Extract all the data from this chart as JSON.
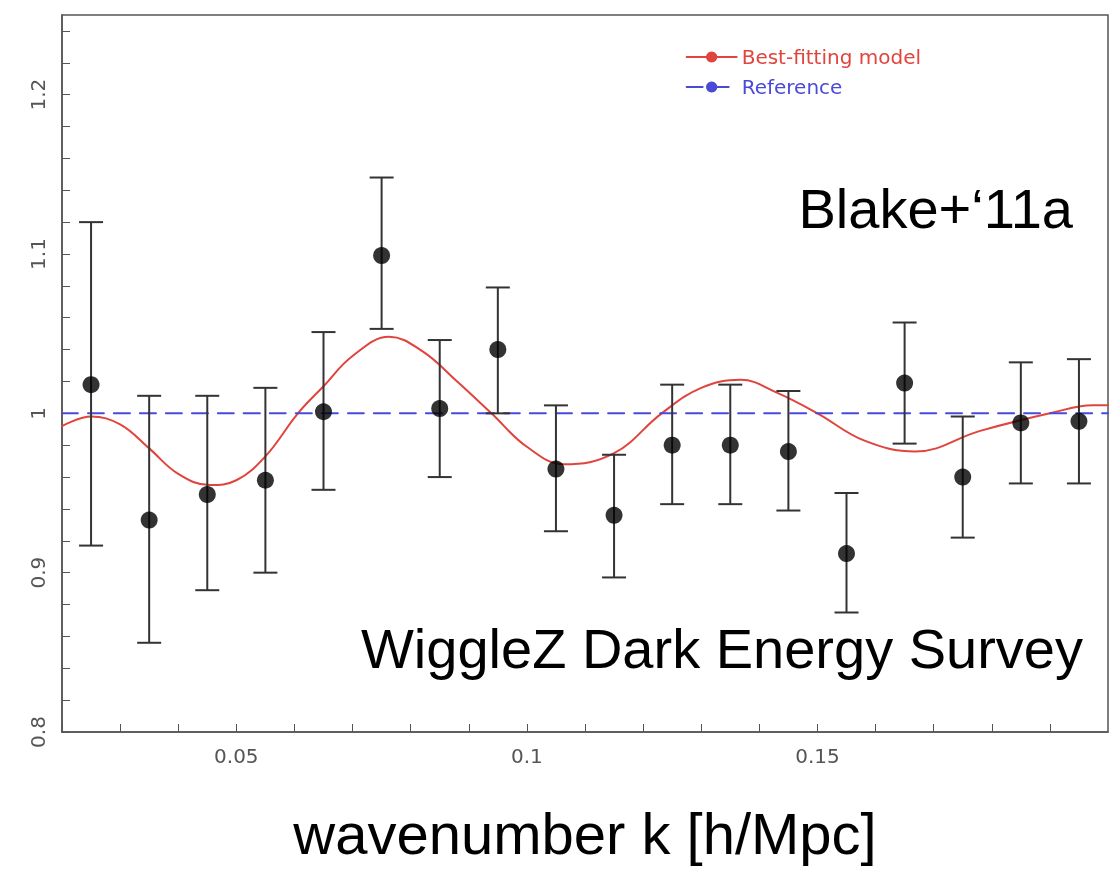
{
  "chart_data": {
    "type": "scatter",
    "xlabel": "wavenumber k [h/Mpc]",
    "annotations": [
      "Blake+‘11a",
      "WiggleZ Dark Energy Survey"
    ],
    "xlim": [
      0.02,
      0.2
    ],
    "ylim": [
      0.8,
      1.25
    ],
    "xticks": [
      {
        "value": 0.02,
        "label": null
      },
      {
        "value": 0.03,
        "label": null
      },
      {
        "value": 0.04,
        "label": null
      },
      0.05,
      {
        "value": 0.06,
        "label": null
      },
      {
        "value": 0.07,
        "label": null
      },
      {
        "value": 0.08,
        "label": null
      },
      {
        "value": 0.09,
        "label": null
      },
      0.1,
      {
        "value": 0.11,
        "label": null
      },
      {
        "value": 0.12,
        "label": null
      },
      {
        "value": 0.13,
        "label": null
      },
      {
        "value": 0.14,
        "label": null
      },
      0.15,
      {
        "value": 0.16,
        "label": null
      },
      {
        "value": 0.17,
        "label": null
      },
      {
        "value": 0.18,
        "label": null
      },
      {
        "value": 0.19,
        "label": null
      }
    ],
    "yticks": [
      0.8,
      {
        "value": 0.82,
        "label": null
      },
      {
        "value": 0.84,
        "label": null
      },
      {
        "value": 0.86,
        "label": null
      },
      {
        "value": 0.88,
        "label": null
      },
      0.9,
      {
        "value": 0.92,
        "label": null
      },
      {
        "value": 0.94,
        "label": null
      },
      {
        "value": 0.96,
        "label": null
      },
      {
        "value": 0.98,
        "label": null
      },
      1,
      {
        "value": 1.02,
        "label": null
      },
      {
        "value": 1.04,
        "label": null
      },
      {
        "value": 1.06,
        "label": null
      },
      {
        "value": 1.08,
        "label": null
      },
      1.1,
      {
        "value": 1.12,
        "label": null
      },
      {
        "value": 1.14,
        "label": null
      },
      {
        "value": 1.16,
        "label": null
      },
      {
        "value": 1.18,
        "label": null
      },
      1.2,
      {
        "value": 1.22,
        "label": null
      },
      {
        "value": 1.24,
        "label": null
      }
    ],
    "grid": false,
    "legend": "top right",
    "series": [
      {
        "color": "#000000",
        "marker": "circle",
        "x": [
          0.025,
          0.035,
          0.045,
          0.055,
          0.065,
          0.075,
          0.085,
          0.095,
          0.105,
          0.115,
          0.125,
          0.135,
          0.145,
          0.155,
          0.165,
          0.175,
          0.185,
          0.195
        ],
        "values": [
          1.018,
          0.933,
          0.949,
          0.958,
          1.001,
          1.099,
          1.003,
          1.04,
          0.965,
          0.936,
          0.98,
          0.98,
          0.976,
          0.912,
          1.019,
          0.96,
          0.994,
          0.995
        ],
        "errors": [
          [
            0.917,
            1.12
          ],
          [
            0.856,
            1.011
          ],
          [
            0.889,
            1.011
          ],
          [
            0.9,
            1.016
          ],
          [
            0.952,
            1.051
          ],
          [
            1.053,
            1.148
          ],
          [
            0.96,
            1.046
          ],
          [
            1.0,
            1.079
          ],
          [
            0.926,
            1.005
          ],
          [
            0.897,
            0.974
          ],
          [
            0.943,
            1.018
          ],
          [
            0.943,
            1.018
          ],
          [
            0.939,
            1.014
          ],
          [
            0.875,
            0.95
          ],
          [
            0.981,
            1.057
          ],
          [
            0.922,
            0.998
          ],
          [
            0.956,
            1.032
          ],
          [
            0.956,
            1.034
          ]
        ]
      },
      {
        "type": "line",
        "name": "Best-fitting model",
        "color": "#e0443c",
        "marker": "none",
        "line_style": "solid",
        "x": [
          0.02,
          0.025,
          0.03,
          0.035,
          0.04,
          0.0454,
          0.05,
          0.055,
          0.0606,
          0.065,
          0.07,
          0.0763,
          0.082,
          0.088,
          0.0939,
          0.1,
          0.1064,
          0.115,
          0.1232,
          0.13,
          0.1368,
          0.143,
          0.15,
          0.158,
          0.1668,
          0.178,
          0.19,
          0.1974,
          0.2
        ],
        "values": [
          0.992,
          0.998,
          0.993,
          0.978,
          0.962,
          0.955,
          0.958,
          0.973,
          1.0,
          1.017,
          1.036,
          1.048,
          1.039,
          1.02,
          1.0,
          0.979,
          0.968,
          0.975,
          1.0,
          1.016,
          1.021,
          1.013,
          1.0,
          0.983,
          0.976,
          0.989,
          1.0,
          1.005,
          1.005
        ]
      },
      {
        "type": "line",
        "name": "Reference",
        "color": "#4a4ad8",
        "marker": "none",
        "line_style": "dashed",
        "x": [
          0.02,
          0.2
        ],
        "values": [
          1,
          1
        ]
      }
    ]
  }
}
